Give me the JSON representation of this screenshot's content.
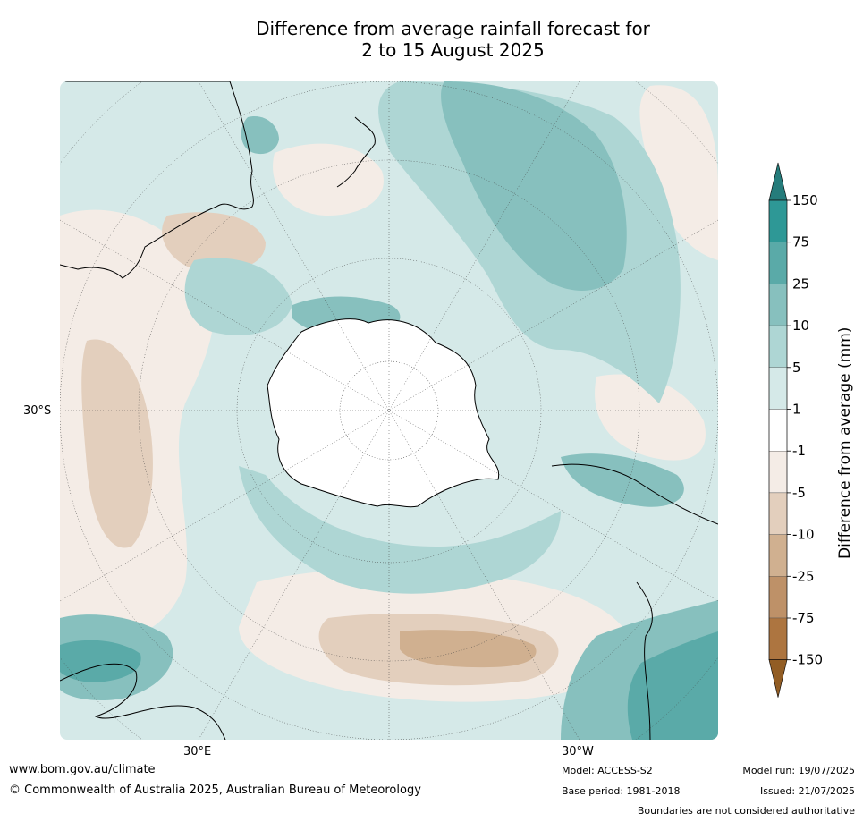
{
  "title_line1": "Difference from average rainfall forecast for",
  "title_line2": "2 to 15 August 2025",
  "map": {
    "labels": {
      "lat": "30°S",
      "lon_east": "30°E",
      "lon_west": "30°W"
    }
  },
  "legend": {
    "label": "Difference from average (mm)",
    "ticks": [
      "150",
      "75",
      "25",
      "10",
      "5",
      "1",
      "-1",
      "-5",
      "-10",
      "-25",
      "-75",
      "-150"
    ],
    "colors": [
      "#257c7b",
      "#2e9896",
      "#5aaaa8",
      "#87c0be",
      "#aed6d4",
      "#d5e9e8",
      "#ffffff",
      "#f4ece6",
      "#e3cfbd",
      "#d0b090",
      "#be9168",
      "#ad7540",
      "#925d24"
    ]
  },
  "palette": {
    "land_dry": "#e3cfbd",
    "land_wet": "#aed6d4",
    "ocean_slight": "#d5e9e8",
    "ocean_dry": "#f4ece6"
  },
  "footer": {
    "website": "www.bom.gov.au/climate",
    "copyright": "© Commonwealth of Australia 2025, Australian Bureau of Meteorology",
    "model": "Model: ACCESS-S2",
    "base_period": "Base period: 1981-2018",
    "model_run": "Model run: 19/07/2025",
    "issued": "Issued: 21/07/2025",
    "disclaimer": "Boundaries are not considered authoritative"
  }
}
